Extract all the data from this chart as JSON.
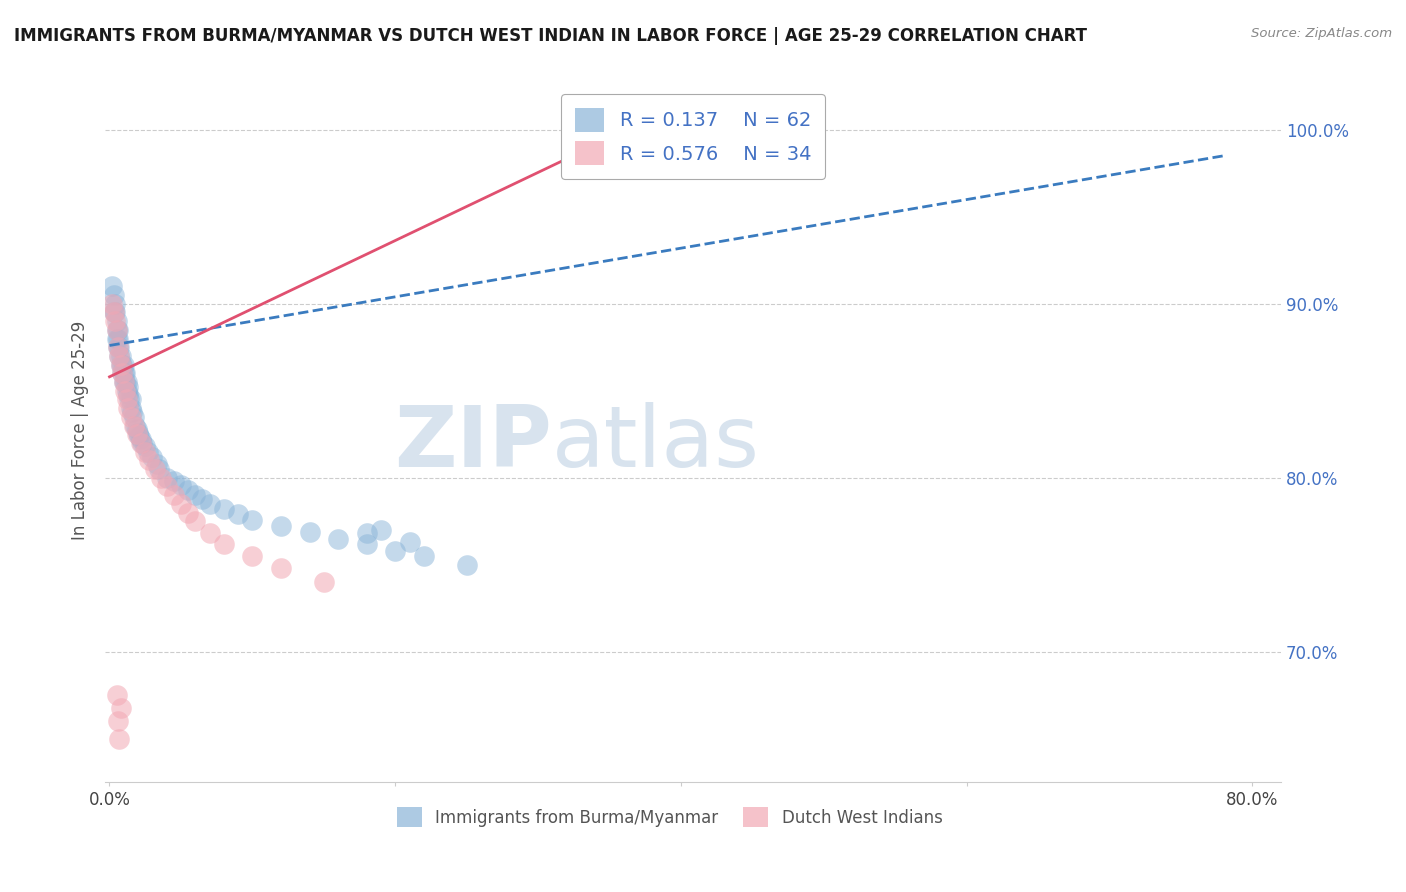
{
  "title": "IMMIGRANTS FROM BURMA/MYANMAR VS DUTCH WEST INDIAN IN LABOR FORCE | AGE 25-29 CORRELATION CHART",
  "source_text": "Source: ZipAtlas.com",
  "ylabel": "In Labor Force | Age 25-29",
  "watermark_zip": "ZIP",
  "watermark_atlas": "atlas",
  "legend_r_blue": "0.137",
  "legend_n_blue": "62",
  "legend_r_pink": "0.576",
  "legend_n_pink": "34",
  "blue_color": "#8ab4d8",
  "pink_color": "#f2a8b4",
  "trend_blue_color": "#3a7bbf",
  "trend_pink_color": "#e05070",
  "xlim_min": -0.003,
  "xlim_max": 0.82,
  "ylim_min": 0.625,
  "ylim_max": 1.03,
  "yticks": [
    0.7,
    0.8,
    0.9,
    1.0
  ],
  "ytick_labels": [
    "70.0%",
    "80.0%",
    "90.0%",
    "100.0%"
  ],
  "xtick_positions": [
    0.0,
    0.2,
    0.4,
    0.6,
    0.8
  ],
  "xtick_labels": [
    "0.0%",
    "",
    "",
    "",
    "80.0%"
  ],
  "blue_trend_x": [
    0.0,
    0.78
  ],
  "blue_trend_y": [
    0.876,
    0.985
  ],
  "pink_trend_x": [
    0.0,
    0.35
  ],
  "pink_trend_y": [
    0.858,
    0.995
  ],
  "blue_x": [
    0.002,
    0.003,
    0.003,
    0.004,
    0.004,
    0.005,
    0.005,
    0.005,
    0.006,
    0.006,
    0.006,
    0.007,
    0.007,
    0.008,
    0.008,
    0.009,
    0.009,
    0.01,
    0.01,
    0.01,
    0.011,
    0.011,
    0.012,
    0.012,
    0.013,
    0.013,
    0.014,
    0.015,
    0.015,
    0.016,
    0.017,
    0.018,
    0.019,
    0.02,
    0.021,
    0.022,
    0.023,
    0.025,
    0.027,
    0.03,
    0.033,
    0.035,
    0.04,
    0.045,
    0.05,
    0.055,
    0.06,
    0.065,
    0.07,
    0.08,
    0.09,
    0.1,
    0.12,
    0.14,
    0.16,
    0.18,
    0.2,
    0.22,
    0.25,
    0.18,
    0.19,
    0.21
  ],
  "blue_y": [
    0.91,
    0.895,
    0.905,
    0.9,
    0.895,
    0.88,
    0.885,
    0.89,
    0.875,
    0.88,
    0.885,
    0.87,
    0.875,
    0.865,
    0.87,
    0.86,
    0.865,
    0.855,
    0.86,
    0.865,
    0.855,
    0.86,
    0.85,
    0.855,
    0.848,
    0.852,
    0.845,
    0.84,
    0.845,
    0.838,
    0.835,
    0.83,
    0.828,
    0.826,
    0.824,
    0.822,
    0.82,
    0.818,
    0.815,
    0.812,
    0.808,
    0.805,
    0.8,
    0.798,
    0.796,
    0.793,
    0.79,
    0.788,
    0.785,
    0.782,
    0.779,
    0.776,
    0.772,
    0.769,
    0.765,
    0.762,
    0.758,
    0.755,
    0.75,
    0.768,
    0.77,
    0.763
  ],
  "pink_x": [
    0.002,
    0.003,
    0.004,
    0.005,
    0.006,
    0.007,
    0.008,
    0.009,
    0.01,
    0.011,
    0.012,
    0.013,
    0.015,
    0.017,
    0.019,
    0.022,
    0.025,
    0.028,
    0.032,
    0.036,
    0.04,
    0.045,
    0.05,
    0.055,
    0.06,
    0.07,
    0.08,
    0.1,
    0.12,
    0.15,
    0.005,
    0.006,
    0.007,
    0.008
  ],
  "pink_y": [
    0.9,
    0.895,
    0.89,
    0.885,
    0.875,
    0.87,
    0.865,
    0.86,
    0.855,
    0.85,
    0.845,
    0.84,
    0.835,
    0.83,
    0.825,
    0.82,
    0.815,
    0.81,
    0.805,
    0.8,
    0.795,
    0.79,
    0.785,
    0.78,
    0.775,
    0.768,
    0.762,
    0.755,
    0.748,
    0.74,
    0.675,
    0.66,
    0.65,
    0.668
  ]
}
